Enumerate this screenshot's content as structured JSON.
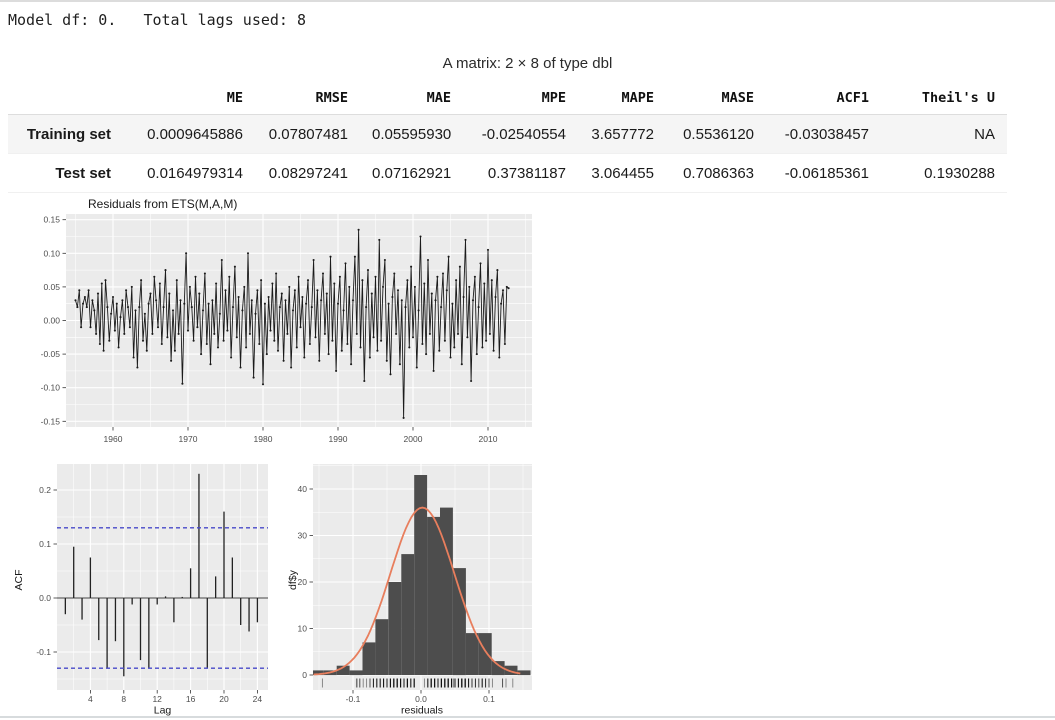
{
  "header": {
    "model_line": "Model df: 0.   Total lags used: 8"
  },
  "table": {
    "caption": "A matrix: 2 × 8 of type dbl",
    "columns": [
      "ME",
      "RMSE",
      "MAE",
      "MPE",
      "MAPE",
      "MASE",
      "ACF1",
      "Theil's U"
    ],
    "rows": [
      {
        "label": "Training set",
        "values": [
          "0.0009645886",
          "0.07807481",
          "0.05595930",
          "-0.02540554",
          "3.657772",
          "0.5536120",
          "-0.03038457",
          "NA"
        ]
      },
      {
        "label": "Test set",
        "values": [
          "0.0164979314",
          "0.08297241",
          "0.07162921",
          "0.37381187",
          "3.064455",
          "0.7086363",
          "-0.06185361",
          "0.1930288"
        ]
      }
    ]
  },
  "colors": {
    "panel": "#ebebeb",
    "grid": "#ffffff",
    "series": "#1b1b1b",
    "axis_text": "#4d4d4d",
    "axis_title": "#1a1a1a",
    "acf_ci": "#4748c9",
    "hist_fill": "#4d4d4d",
    "hist_curve": "#e87e5d",
    "stripe": "#f5f5f5"
  },
  "chart_data": [
    {
      "type": "line",
      "name": "residuals-series",
      "title": "Residuals from ETS(M,A,M)",
      "xlabel": "",
      "ylabel": "",
      "x_start": 1955.0,
      "x_step": 0.25,
      "xlim": [
        1953.2,
        2015.9
      ],
      "ylim": [
        -0.158,
        0.158
      ],
      "xtick_vals": [
        1960,
        1970,
        1980,
        1990,
        2000,
        2010
      ],
      "xtick_labels": [
        "1960",
        "1970",
        "1980",
        "1990",
        "2000",
        "2010"
      ],
      "xticks_minor": [
        1955,
        1965,
        1975,
        1985,
        1995,
        2005,
        2015
      ],
      "ytick_vals": [
        0.15,
        0.1,
        0.05,
        0.0,
        -0.05,
        -0.1,
        -0.15
      ],
      "ytick_labels": [
        "0.15",
        "0.10",
        "0.05",
        "0.00",
        "-0.05",
        "-0.10",
        "-0.15"
      ],
      "yticks_minor": [
        0.125,
        0.075,
        0.025,
        -0.025,
        -0.075,
        -0.125
      ],
      "values": [
        0.03,
        0.02,
        0.045,
        -0.01,
        0.025,
        0.035,
        0.02,
        0.045,
        -0.01,
        0.03,
        0.015,
        -0.02,
        0.04,
        -0.035,
        0.055,
        -0.045,
        0.06,
        0.02,
        -0.03,
        0.01,
        0.035,
        -0.015,
        0.025,
        -0.04,
        0.005,
        0.03,
        -0.02,
        0.045,
        0.02,
        -0.01,
        0.05,
        -0.055,
        0.015,
        -0.07,
        0.02,
        0.06,
        -0.03,
        0.01,
        -0.045,
        0.025,
        0.04,
        -0.02,
        0.065,
        0.03,
        -0.01,
        0.055,
        -0.035,
        0.02,
        0.075,
        -0.025,
        0.04,
        -0.06,
        0.015,
        -0.045,
        0.06,
        -0.02,
        0.03,
        -0.094,
        0.025,
        0.1,
        -0.015,
        0.05,
        0.02,
        -0.03,
        0.065,
        -0.01,
        0.04,
        -0.05,
        0.015,
        0.07,
        -0.035,
        0.025,
        -0.065,
        0.03,
        -0.02,
        0.055,
        -0.04,
        0.01,
        0.09,
        -0.03,
        0.045,
        -0.015,
        0.065,
        -0.055,
        0.02,
        0.08,
        -0.025,
        0.035,
        -0.07,
        0.015,
        0.05,
        -0.04,
        0.1,
        -0.02,
        0.03,
        -0.085,
        0.01,
        0.045,
        -0.035,
        0.06,
        -0.095,
        0.025,
        -0.05,
        0.035,
        -0.015,
        0.055,
        -0.03,
        0.07,
        -0.045,
        0.02,
        0.04,
        -0.06,
        0.03,
        -0.02,
        0.05,
        -0.07,
        0.015,
        0.045,
        -0.04,
        0.065,
        -0.01,
        0.035,
        -0.055,
        0.025,
        0.06,
        -0.035,
        0.02,
        0.09,
        -0.025,
        0.045,
        -0.06,
        0.03,
        0.07,
        -0.02,
        0.04,
        -0.05,
        0.095,
        -0.03,
        0.055,
        -0.075,
        0.025,
        0.065,
        -0.045,
        0.015,
        0.085,
        -0.035,
        0.05,
        -0.065,
        0.03,
        0.095,
        -0.02,
        0.135,
        -0.04,
        0.06,
        -0.09,
        0.02,
        0.075,
        -0.055,
        0.04,
        -0.025,
        0.065,
        -0.045,
        0.12,
        -0.03,
        0.05,
        0.09,
        -0.06,
        0.025,
        -0.08,
        0.035,
        0.07,
        -0.02,
        0.045,
        -0.065,
        0.03,
        -0.145,
        0.02,
        0.06,
        -0.04,
        0.08,
        -0.025,
        0.05,
        -0.07,
        0.015,
        0.125,
        -0.035,
        0.055,
        -0.05,
        0.09,
        -0.02,
        0.04,
        -0.075,
        0.03,
        0.065,
        -0.045,
        0.02,
        0.07,
        -0.03,
        0.045,
        0.095,
        -0.055,
        0.025,
        -0.04,
        0.06,
        -0.02,
        0.08,
        -0.065,
        0.035,
        0.12,
        -0.025,
        0.05,
        -0.09,
        0.03,
        0.065,
        -0.05,
        0.02,
        0.085,
        -0.04,
        0.055,
        -0.03,
        0.105,
        -0.02,
        0.06,
        -0.045,
        0.035,
        0.075,
        -0.055,
        0.025,
        0.045,
        -0.035,
        0.05,
        0.048
      ]
    },
    {
      "type": "bar",
      "name": "acf",
      "title": "",
      "xlabel": "Lag",
      "ylabel": "ACF",
      "conf_level": 0.13,
      "xtick_vals": [
        4,
        8,
        12,
        16,
        20,
        24
      ],
      "xtick_labels": [
        "4",
        "8",
        "12",
        "16",
        "20",
        "24"
      ],
      "xticks_minor": [
        2,
        6,
        10,
        14,
        18,
        22
      ],
      "ytick_vals": [
        0.2,
        0.1,
        0.0,
        -0.1
      ],
      "ytick_labels": [
        "0.2",
        "0.1",
        "0.0",
        "-0.1"
      ],
      "yticks_minor": [
        0.15,
        0.05,
        -0.05,
        -0.15
      ],
      "lags": [
        1,
        2,
        3,
        4,
        5,
        6,
        7,
        8,
        9,
        10,
        11,
        12,
        13,
        14,
        15,
        16,
        17,
        18,
        19,
        20,
        21,
        22,
        23,
        24
      ],
      "values": [
        -0.03,
        0.095,
        -0.04,
        0.075,
        -0.078,
        -0.13,
        -0.08,
        -0.145,
        -0.012,
        -0.115,
        -0.13,
        -0.012,
        0.003,
        -0.045,
        0.002,
        0.055,
        0.23,
        -0.13,
        0.04,
        0.16,
        0.075,
        -0.05,
        -0.062,
        -0.045
      ]
    },
    {
      "type": "histogram",
      "name": "residual-histogram",
      "title": "",
      "xlabel": "residuals",
      "ylabel": "df$y",
      "bin_start": -0.162,
      "bin_width": 0.019,
      "counts": [
        1,
        1,
        2,
        1,
        7,
        12,
        20,
        26,
        43,
        34,
        36,
        23,
        9,
        9,
        3,
        2,
        1
      ],
      "curve": {
        "mean": 0.002,
        "sd": 0.047,
        "peak": 36
      },
      "xtick_vals": [
        -0.1,
        0.0,
        0.1
      ],
      "xtick_labels": [
        "-0.1",
        "0.0",
        "0.1"
      ],
      "xticks_minor": [
        -0.15,
        -0.05,
        0.05,
        0.15
      ],
      "ytick_vals": [
        0,
        10,
        20,
        30,
        40
      ],
      "ytick_labels": [
        "0",
        "10",
        "20",
        "30",
        "40"
      ],
      "yticks_minor": [
        5,
        15,
        25,
        35,
        45
      ]
    }
  ]
}
